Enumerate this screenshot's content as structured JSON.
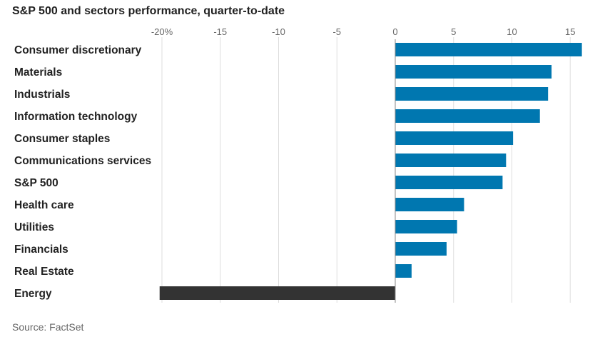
{
  "chart_data": {
    "type": "bar",
    "orientation": "horizontal",
    "title": "S&P 500 and sectors performance, quarter-to-date",
    "source": "Source: FactSet",
    "xlim": [
      -20,
      15
    ],
    "grid": true,
    "x_ticks": [
      -20,
      -15,
      -10,
      -5,
      0,
      5,
      10,
      15
    ],
    "x_tick_labels": [
      "-20%",
      "-15",
      "-10",
      "-5",
      "0",
      "5",
      "10",
      "15"
    ],
    "categories": [
      "Consumer discretionary",
      "Materials",
      "Industrials",
      "Information technology",
      "Consumer staples",
      "Communications services",
      "S&P 500",
      "Health care",
      "Utilities",
      "Financials",
      "Real Estate",
      "Energy"
    ],
    "values": [
      16.0,
      13.4,
      13.1,
      12.4,
      10.1,
      9.5,
      9.2,
      5.9,
      5.3,
      4.4,
      1.4,
      -20.2
    ],
    "colors": {
      "positive": "#0077b0",
      "negative": "#333333",
      "gridline": "#dddddd",
      "zeroline": "#888888"
    }
  }
}
